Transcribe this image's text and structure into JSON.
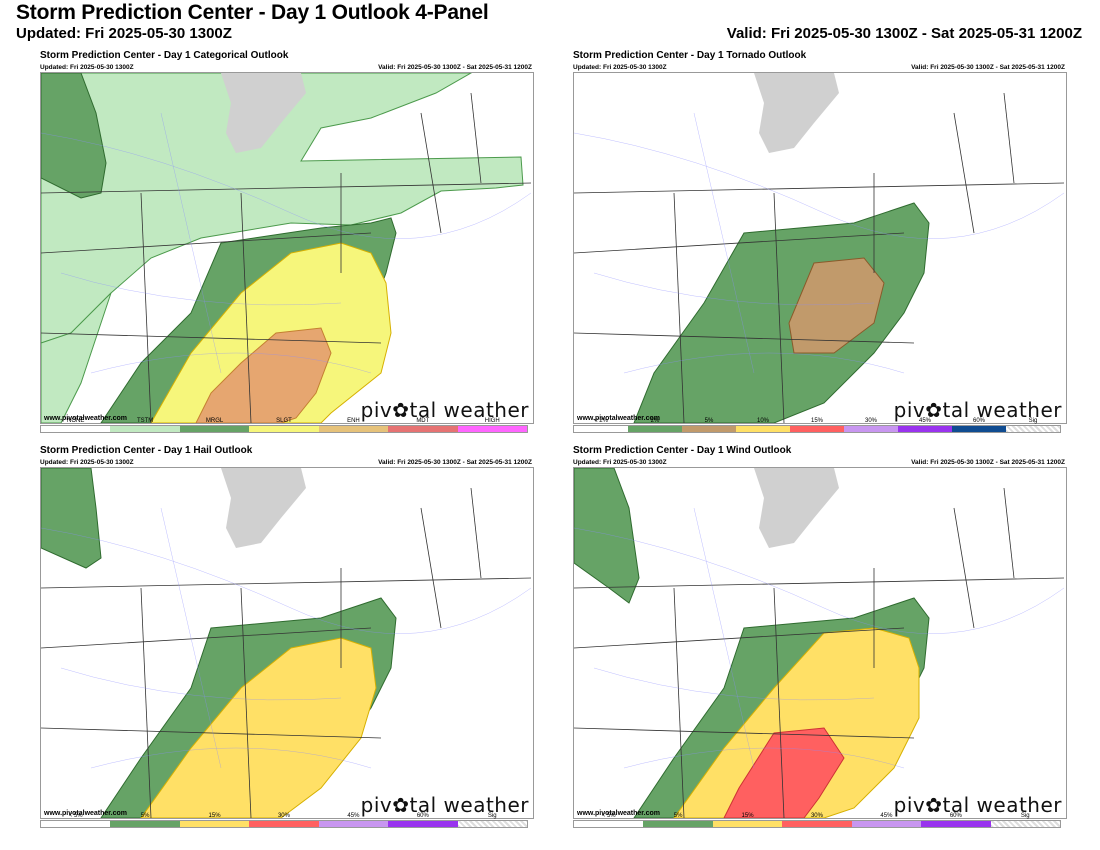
{
  "header": {
    "title": "Storm Prediction Center - Day 1 Outlook 4-Panel",
    "updated": "Updated: Fri 2025-05-30 1300Z",
    "valid": "Valid: Fri 2025-05-30 1300Z - Sat 2025-05-31 1200Z"
  },
  "colors": {
    "tstm": "#c1e9c1",
    "mrgl": "#66a366",
    "slgt": "#ffe066",
    "enh": "#e8a060",
    "mdt": "#e67373",
    "high": "#ff66ff",
    "tor2": "#66a366",
    "tor5": "#c19a6b",
    "wind15": "#ffe066",
    "wind30": "#ff6060"
  },
  "panels": [
    {
      "title": "Storm Prediction Center - Day 1 Categorical Outlook",
      "updated": "Updated: Fri 2025-05-30 1300Z",
      "valid": "Valid: Fri 2025-05-30 1300Z - Sat 2025-05-31 1200Z",
      "site": "www.pivotalweather.com",
      "brand": "piv✿tal weather",
      "legend": [
        {
          "label": "NONE",
          "color": "#ffffff"
        },
        {
          "label": "TSTM",
          "color": "#c1e9c1"
        },
        {
          "label": "MRGL",
          "color": "#66a366"
        },
        {
          "label": "SLGT",
          "color": "#f6f67b"
        },
        {
          "label": "ENH",
          "color": "#e6c27a"
        },
        {
          "label": "MDT",
          "color": "#e67373"
        },
        {
          "label": "HIGH",
          "color": "#ff66ff"
        }
      ]
    },
    {
      "title": "Storm Prediction Center - Day 1 Tornado Outlook",
      "updated": "Updated: Fri 2025-05-30 1300Z",
      "valid": "Valid: Fri 2025-05-30 1300Z - Sat 2025-05-31 1200Z",
      "site": "www.pivotalweather.com",
      "brand": "piv✿tal weather",
      "legend": [
        {
          "label": "< 2%",
          "color": "#ffffff"
        },
        {
          "label": "2%",
          "color": "#66a366"
        },
        {
          "label": "5%",
          "color": "#c19a6b"
        },
        {
          "label": "10%",
          "color": "#ffe066"
        },
        {
          "label": "15%",
          "color": "#ff6060"
        },
        {
          "label": "30%",
          "color": "#c896f0"
        },
        {
          "label": "45%",
          "color": "#9933ee"
        },
        {
          "label": "60%",
          "color": "#104c91"
        },
        {
          "label": "Sig",
          "color": "hatch"
        }
      ]
    },
    {
      "title": "Storm Prediction Center - Day 1 Hail Outlook",
      "updated": "Updated: Fri 2025-05-30 1300Z",
      "valid": "Valid: Fri 2025-05-30 1300Z - Sat 2025-05-31 1200Z",
      "site": "www.pivotalweather.com",
      "brand": "piv✿tal weather",
      "legend": [
        {
          "label": "< 5%",
          "color": "#ffffff"
        },
        {
          "label": "5%",
          "color": "#66a366"
        },
        {
          "label": "15%",
          "color": "#ffe066"
        },
        {
          "label": "30%",
          "color": "#ff6060"
        },
        {
          "label": "45%",
          "color": "#c896f0"
        },
        {
          "label": "60%",
          "color": "#9933ee"
        },
        {
          "label": "Sig",
          "color": "hatch"
        }
      ]
    },
    {
      "title": "Storm Prediction Center - Day 1 Wind Outlook",
      "updated": "Updated: Fri 2025-05-30 1300Z",
      "valid": "Valid: Fri 2025-05-30 1300Z - Sat 2025-05-31 1200Z",
      "site": "www.pivotalweather.com",
      "brand": "piv✿tal weather",
      "legend": [
        {
          "label": "< 5%",
          "color": "#ffffff"
        },
        {
          "label": "5%",
          "color": "#66a366"
        },
        {
          "label": "15%",
          "color": "#ffe066"
        },
        {
          "label": "30%",
          "color": "#ff6060"
        },
        {
          "label": "45%",
          "color": "#c896f0"
        },
        {
          "label": "60%",
          "color": "#9933ee"
        },
        {
          "label": "Sig",
          "color": "hatch"
        }
      ]
    }
  ]
}
